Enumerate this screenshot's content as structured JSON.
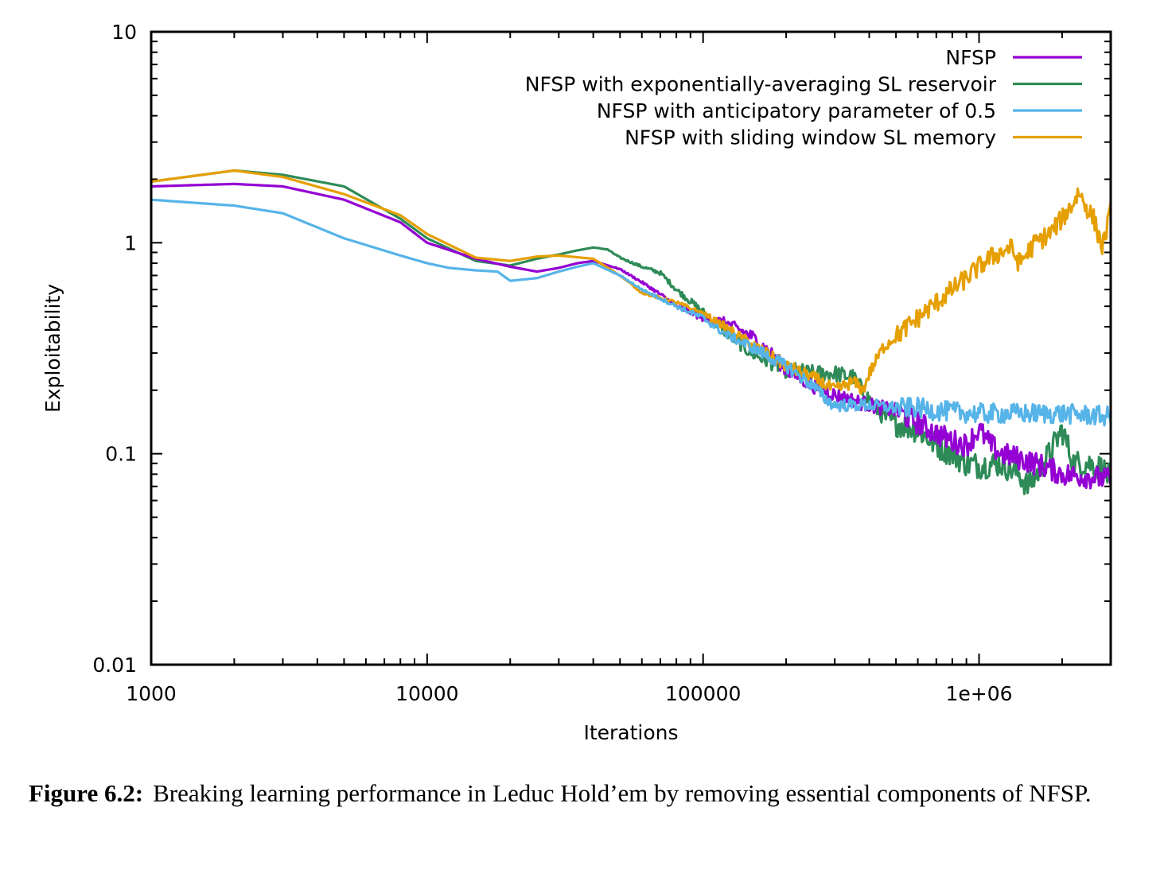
{
  "chart_data": {
    "type": "line",
    "xlabel": "Iterations",
    "ylabel": "Exploitability",
    "x_scale": "log",
    "y_scale": "log",
    "xlim": [
      1000,
      3000000
    ],
    "ylim": [
      0.01,
      10
    ],
    "x_ticks": [
      {
        "value": 1000,
        "label": "1000"
      },
      {
        "value": 10000,
        "label": "10000"
      },
      {
        "value": 100000,
        "label": "100000"
      },
      {
        "value": 1000000,
        "label": "1e+06"
      }
    ],
    "y_ticks": [
      {
        "value": 10,
        "label": "10"
      },
      {
        "value": 1,
        "label": "1"
      },
      {
        "value": 0.1,
        "label": "0.1"
      },
      {
        "value": 0.01,
        "label": "0.01"
      }
    ],
    "grid": false,
    "legend_position": "top-right",
    "series": [
      {
        "name": "NFSP",
        "color": "#9400d3",
        "noise": 0.035,
        "x": [
          1000,
          2000,
          3000,
          5000,
          8000,
          10000,
          15000,
          20000,
          25000,
          30000,
          35000,
          40000,
          50000,
          60000,
          70000,
          80000,
          90000,
          100000,
          120000,
          150000,
          180000,
          200000,
          250000,
          300000,
          400000,
          500000,
          600000,
          700000,
          800000,
          900000,
          1000000,
          1100000,
          1200000,
          1400000,
          1600000,
          1800000,
          2000000,
          2500000,
          3000000
        ],
        "values": [
          1.85,
          1.9,
          1.85,
          1.6,
          1.25,
          1.0,
          0.84,
          0.77,
          0.73,
          0.76,
          0.8,
          0.82,
          0.75,
          0.65,
          0.57,
          0.5,
          0.47,
          0.44,
          0.42,
          0.36,
          0.29,
          0.25,
          0.21,
          0.19,
          0.17,
          0.16,
          0.14,
          0.125,
          0.115,
          0.11,
          0.13,
          0.11,
          0.1,
          0.095,
          0.09,
          0.085,
          0.08,
          0.078,
          0.075
        ]
      },
      {
        "name": "NFSP with exponentially-averaging SL reservoir",
        "color": "#2e8b57",
        "noise": 0.04,
        "x": [
          1000,
          2000,
          3000,
          5000,
          8000,
          10000,
          15000,
          20000,
          25000,
          30000,
          35000,
          40000,
          45000,
          50000,
          60000,
          70000,
          80000,
          100000,
          120000,
          150000,
          180000,
          200000,
          250000,
          300000,
          350000,
          400000,
          450000,
          500000,
          600000,
          700000,
          800000,
          900000,
          1000000,
          1200000,
          1400000,
          1500000,
          1600000,
          1800000,
          2000000,
          2200000,
          2500000,
          2800000,
          3000000
        ],
        "values": [
          1.95,
          2.2,
          2.1,
          1.85,
          1.3,
          1.05,
          0.82,
          0.78,
          0.84,
          0.88,
          0.92,
          0.95,
          0.93,
          0.85,
          0.77,
          0.72,
          0.6,
          0.47,
          0.38,
          0.3,
          0.27,
          0.25,
          0.24,
          0.24,
          0.23,
          0.18,
          0.15,
          0.14,
          0.13,
          0.11,
          0.1,
          0.09,
          0.088,
          0.09,
          0.08,
          0.07,
          0.078,
          0.1,
          0.13,
          0.09,
          0.09,
          0.085,
          0.075
        ]
      },
      {
        "name": "NFSP with anticipatory parameter of 0.5",
        "color": "#56b4e9",
        "noise": 0.03,
        "x": [
          1000,
          2000,
          3000,
          5000,
          8000,
          10000,
          12000,
          15000,
          18000,
          20000,
          25000,
          30000,
          35000,
          40000,
          50000,
          60000,
          80000,
          100000,
          120000,
          150000,
          200000,
          250000,
          280000,
          300000,
          400000,
          500000,
          600000,
          700000,
          1000000,
          1500000,
          2000000,
          3000000
        ],
        "values": [
          1.6,
          1.5,
          1.38,
          1.05,
          0.87,
          0.8,
          0.76,
          0.74,
          0.73,
          0.66,
          0.68,
          0.73,
          0.77,
          0.8,
          0.7,
          0.6,
          0.5,
          0.44,
          0.37,
          0.32,
          0.26,
          0.21,
          0.18,
          0.17,
          0.17,
          0.165,
          0.165,
          0.16,
          0.155,
          0.155,
          0.155,
          0.15
        ]
      },
      {
        "name": "NFSP with sliding window SL memory",
        "color": "#e69f00",
        "noise": 0.03,
        "x": [
          1000,
          2000,
          3000,
          5000,
          8000,
          10000,
          15000,
          20000,
          25000,
          30000,
          40000,
          50000,
          60000,
          80000,
          100000,
          120000,
          150000,
          200000,
          250000,
          300000,
          350000,
          380000,
          400000,
          450000,
          500000,
          600000,
          700000,
          800000,
          900000,
          1000000,
          1100000,
          1200000,
          1300000,
          1400000,
          1600000,
          1800000,
          2000000,
          2200000,
          2300000,
          2400000,
          2600000,
          2800000,
          3000000
        ],
        "values": [
          1.95,
          2.2,
          2.05,
          1.7,
          1.35,
          1.1,
          0.85,
          0.82,
          0.86,
          0.87,
          0.84,
          0.7,
          0.58,
          0.52,
          0.46,
          0.4,
          0.33,
          0.26,
          0.23,
          0.2,
          0.22,
          0.2,
          0.24,
          0.32,
          0.36,
          0.44,
          0.52,
          0.6,
          0.68,
          0.77,
          0.85,
          0.9,
          0.95,
          0.8,
          1.0,
          1.1,
          1.3,
          1.55,
          1.75,
          1.55,
          1.3,
          0.95,
          1.4
        ]
      }
    ]
  },
  "caption": {
    "label": "Figure 6.2:",
    "text": "Breaking learning performance in Leduc Hold’em by removing essential components of NFSP."
  }
}
